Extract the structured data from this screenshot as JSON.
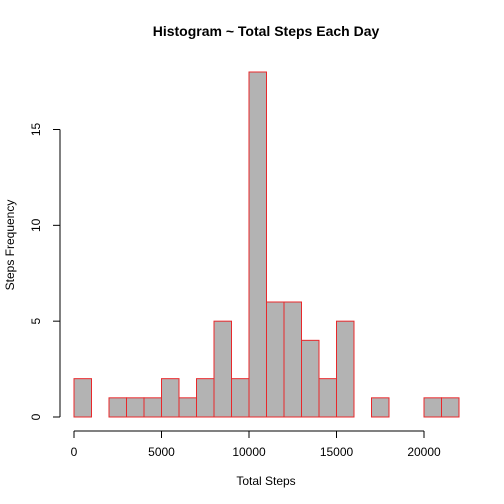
{
  "chart_data": {
    "type": "bar",
    "title": "Histogram ~ Total Steps Each Day",
    "xlabel": "Total Steps",
    "ylabel": "Steps Frequency",
    "bin_width": 1000,
    "bin_start": 0,
    "counts": [
      2,
      0,
      1,
      1,
      1,
      2,
      1,
      2,
      5,
      2,
      18,
      6,
      6,
      4,
      2,
      5,
      0,
      1,
      0,
      0,
      1,
      1
    ],
    "xlim": [
      0,
      22000
    ],
    "ylim": [
      0,
      18
    ],
    "x_ticks": [
      0,
      5000,
      10000,
      15000,
      20000
    ],
    "y_ticks": [
      0,
      5,
      10,
      15
    ],
    "bar_fill": "#b3b3b3",
    "bar_border": "#e8282b",
    "grid": false
  }
}
